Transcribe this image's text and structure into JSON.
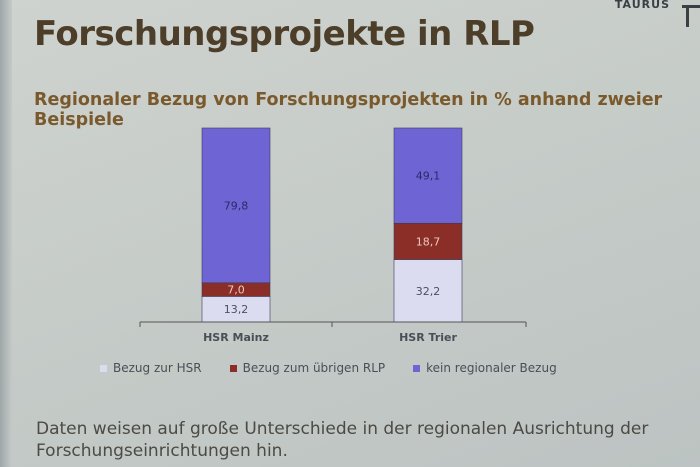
{
  "brand": "TAURUS",
  "title": "Forschungsprojekte in RLP",
  "subtitle": "Regionaler Bezug von Forschungsprojekten in % anhand zweier Beispiele",
  "footer": "Daten weisen auf große Unterschiede in der regionalen Ausrichtung der Forschungseinrichtungen hin.",
  "colors": {
    "bezug_hsr": "#dcdcf0",
    "bezug_rlp": "#8c2e28",
    "kein_bezug": "#6e64d4"
  },
  "chart_data": {
    "type": "bar",
    "stacked": true,
    "categories": [
      "HSR Mainz",
      "HSR Trier"
    ],
    "series": [
      {
        "name": "Bezug zur HSR",
        "values": [
          13.2,
          32.2
        ],
        "labels": [
          "13,2",
          "32,2"
        ]
      },
      {
        "name": "Bezug zum übrigen RLP",
        "values": [
          7.0,
          18.7
        ],
        "labels": [
          "7,0",
          "18,7"
        ]
      },
      {
        "name": "kein regionaler Bezug",
        "values": [
          79.8,
          49.1
        ],
        "labels": [
          "79,8",
          "49,1"
        ]
      }
    ],
    "ylim": [
      0,
      100
    ],
    "legend": "bottom"
  }
}
